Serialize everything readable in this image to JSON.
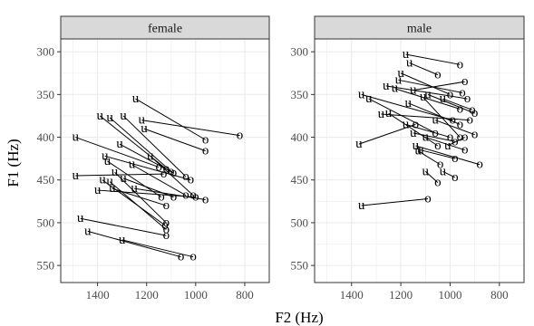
{
  "figure": {
    "xlabel": "F2 (Hz)",
    "ylabel": "F1 (Hz)"
  },
  "chart_data": [
    {
      "type": "scatter",
      "panel": "female",
      "xlabel": "F2 (Hz)",
      "ylabel": "F1 (Hz)",
      "xlim": [
        1550,
        700
      ],
      "ylim": [
        570,
        285
      ],
      "x_reversed": true,
      "y_reversed": true,
      "x_ticks": [
        1400,
        1200,
        1000,
        800
      ],
      "y_ticks": [
        300,
        350,
        400,
        450,
        500,
        550
      ],
      "grid": true,
      "marker_labels": {
        "start": "u",
        "end": "o"
      },
      "segments": [
        {
          "u": [
            1245,
            355
          ],
          "o": [
            960,
            403
          ]
        },
        {
          "u": [
            1220,
            380
          ],
          "o": [
            820,
            398
          ]
        },
        {
          "u": [
            1390,
            375
          ],
          "o": [
            1120,
            437
          ]
        },
        {
          "u": [
            1350,
            377
          ],
          "o": [
            1100,
            440
          ]
        },
        {
          "u": [
            1295,
            375
          ],
          "o": [
            1040,
            446
          ]
        },
        {
          "u": [
            1210,
            390
          ],
          "o": [
            960,
            416
          ]
        },
        {
          "u": [
            1490,
            400
          ],
          "o": [
            1150,
            435
          ]
        },
        {
          "u": [
            1370,
            422
          ],
          "o": [
            1020,
            450
          ]
        },
        {
          "u": [
            1310,
            408
          ],
          "o": [
            1090,
            442
          ]
        },
        {
          "u": [
            1185,
            422
          ],
          "o": [
            1010,
            468
          ]
        },
        {
          "u": [
            1360,
            428
          ],
          "o": [
            1140,
            470
          ]
        },
        {
          "u": [
            1260,
            432
          ],
          "o": [
            1040,
            468
          ]
        },
        {
          "u": [
            1490,
            445
          ],
          "o": [
            1130,
            443
          ]
        },
        {
          "u": [
            1330,
            441
          ],
          "o": [
            1120,
            500
          ]
        },
        {
          "u": [
            1295,
            448
          ],
          "o": [
            1090,
            470
          ]
        },
        {
          "u": [
            1380,
            450
          ],
          "o": [
            1125,
            503
          ]
        },
        {
          "u": [
            1350,
            452
          ],
          "o": [
            1120,
            508
          ]
        },
        {
          "u": [
            1340,
            460
          ],
          "o": [
            1120,
            480
          ]
        },
        {
          "u": [
            1400,
            462
          ],
          "o": [
            1000,
            470
          ]
        },
        {
          "u": [
            1250,
            460
          ],
          "o": [
            960,
            473
          ]
        },
        {
          "u": [
            1470,
            495
          ],
          "o": [
            1120,
            515
          ]
        },
        {
          "u": [
            1440,
            510
          ],
          "o": [
            1060,
            540
          ]
        },
        {
          "u": [
            1300,
            520
          ],
          "o": [
            1010,
            540
          ]
        }
      ]
    },
    {
      "type": "scatter",
      "panel": "male",
      "xlabel": "F2 (Hz)",
      "ylabel": "F1 (Hz)",
      "xlim": [
        1550,
        700
      ],
      "ylim": [
        570,
        285
      ],
      "x_reversed": true,
      "y_reversed": true,
      "x_ticks": [
        1400,
        1200,
        1000,
        800
      ],
      "y_ticks": [
        300,
        350,
        400,
        450,
        500,
        550
      ],
      "grid": true,
      "marker_labels": {
        "start": "u",
        "end": "o"
      },
      "segments": [
        {
          "u": [
            1180,
            303
          ],
          "o": [
            960,
            315
          ]
        },
        {
          "u": [
            1165,
            313
          ],
          "o": [
            1050,
            327
          ]
        },
        {
          "u": [
            1200,
            325
          ],
          "o": [
            1000,
            350
          ]
        },
        {
          "u": [
            1210,
            333
          ],
          "o": [
            950,
            348
          ]
        },
        {
          "u": [
            1225,
            343
          ],
          "o": [
            960,
            367
          ]
        },
        {
          "u": [
            1260,
            340
          ],
          "o": [
            930,
            355
          ]
        },
        {
          "u": [
            1150,
            345
          ],
          "o": [
            940,
            335
          ]
        },
        {
          "u": [
            1360,
            350
          ],
          "o": [
            990,
            380
          ]
        },
        {
          "u": [
            1330,
            355
          ],
          "o": [
            1060,
            395
          ]
        },
        {
          "u": [
            1170,
            360
          ],
          "o": [
            960,
            385
          ]
        },
        {
          "u": [
            1280,
            373
          ],
          "o": [
            920,
            380
          ]
        },
        {
          "u": [
            1250,
            372
          ],
          "o": [
            1050,
            410
          ]
        },
        {
          "u": [
            1090,
            350
          ],
          "o": [
            900,
            372
          ]
        },
        {
          "u": [
            1030,
            355
          ],
          "o": [
            910,
            368
          ]
        },
        {
          "u": [
            1110,
            353
          ],
          "o": [
            960,
            400
          ]
        },
        {
          "u": [
            1180,
            385
          ],
          "o": [
            1000,
            400
          ]
        },
        {
          "u": [
            1150,
            395
          ],
          "o": [
            980,
            405
          ]
        },
        {
          "u": [
            1100,
            400
          ],
          "o": [
            940,
            415
          ]
        },
        {
          "u": [
            1370,
            408
          ],
          "o": [
            1140,
            385
          ]
        },
        {
          "u": [
            1140,
            410
          ],
          "o": [
            880,
            432
          ]
        },
        {
          "u": [
            1130,
            416
          ],
          "o": [
            1040,
            432
          ]
        },
        {
          "u": [
            1010,
            410
          ],
          "o": [
            940,
            400
          ]
        },
        {
          "u": [
            1060,
            380
          ],
          "o": [
            900,
            397
          ]
        },
        {
          "u": [
            1120,
            415
          ],
          "o": [
            980,
            425
          ]
        },
        {
          "u": [
            1100,
            440
          ],
          "o": [
            1050,
            453
          ]
        },
        {
          "u": [
            1030,
            440
          ],
          "o": [
            980,
            447
          ]
        },
        {
          "u": [
            1360,
            480
          ],
          "o": [
            1090,
            472
          ]
        }
      ]
    }
  ]
}
